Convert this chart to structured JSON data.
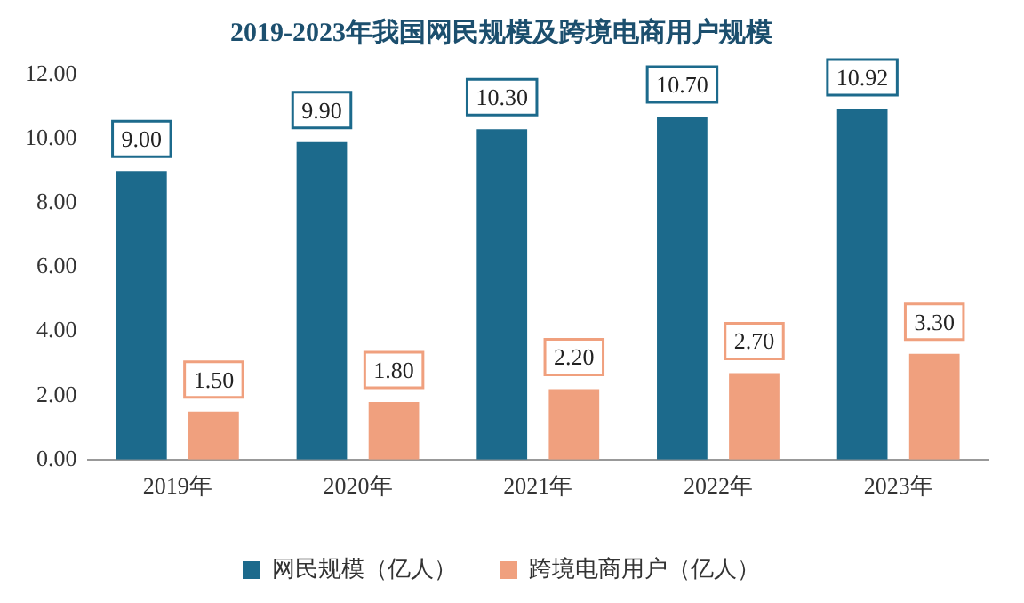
{
  "chart_data": {
    "type": "bar",
    "title": "2019-2023年我国网民规模及跨境电商用户规模",
    "categories": [
      "2019年",
      "2020年",
      "2021年",
      "2022年",
      "2023年"
    ],
    "series": [
      {
        "name": "网民规模（亿人）",
        "color": "#1c6a8c",
        "values": [
          9.0,
          9.9,
          10.3,
          10.7,
          10.92
        ],
        "value_labels": [
          "9.00",
          "9.90",
          "10.30",
          "10.70",
          "10.92"
        ]
      },
      {
        "name": "跨境电商用户（亿人）",
        "color": "#f0a07e",
        "values": [
          1.5,
          1.8,
          2.2,
          2.7,
          3.3
        ],
        "value_labels": [
          "1.50",
          "1.80",
          "2.20",
          "2.70",
          "3.30"
        ]
      }
    ],
    "ylim": [
      0,
      12
    ],
    "yticks": [
      {
        "value": 0,
        "label": "0.00"
      },
      {
        "value": 2,
        "label": "2.00"
      },
      {
        "value": 4,
        "label": "4.00"
      },
      {
        "value": 6,
        "label": "6.00"
      },
      {
        "value": 8,
        "label": "8.00"
      },
      {
        "value": 10,
        "label": "10.00"
      },
      {
        "value": 12,
        "label": "12.00"
      }
    ],
    "grid": false,
    "legend": "bottom"
  }
}
